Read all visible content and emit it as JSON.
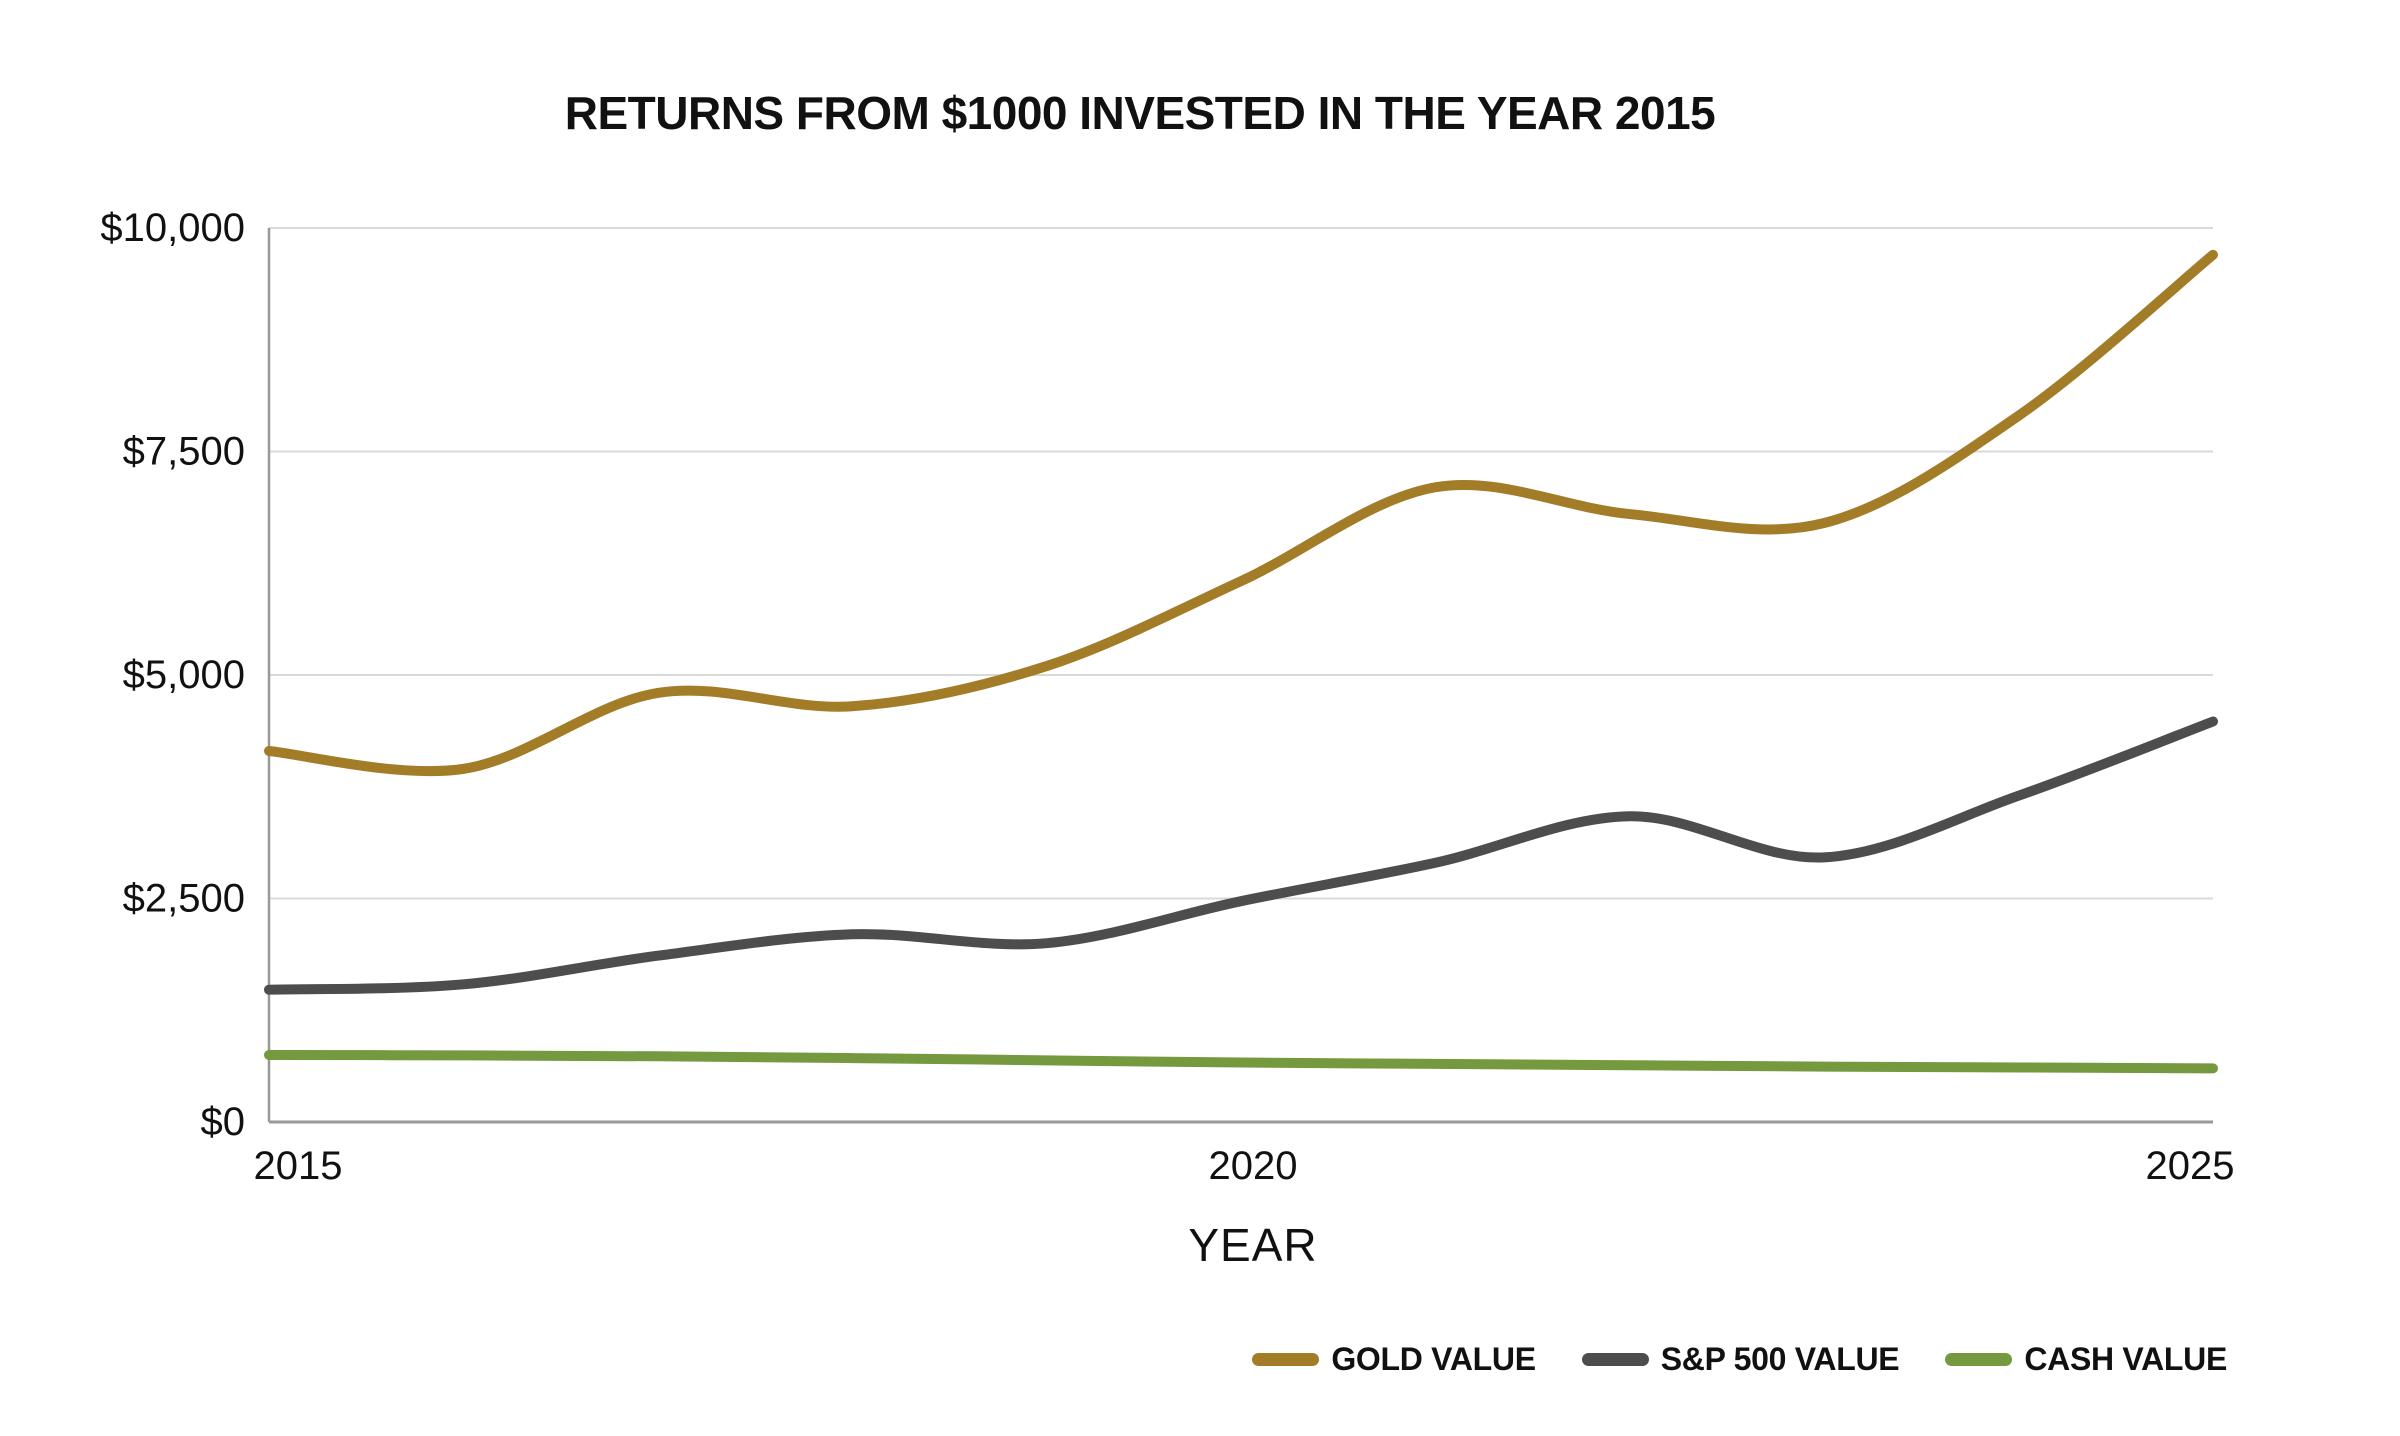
{
  "page": {
    "background": "#ffffff"
  },
  "chart_data": {
    "type": "line",
    "title": "RETURNS FROM $1000 INVESTED IN THE YEAR 2015",
    "xlabel": "YEAR",
    "ylabel": "",
    "xlim": [
      2015,
      2025
    ],
    "ylim": [
      0,
      10000
    ],
    "grid": "horizontal",
    "x": [
      2015,
      2016,
      2017,
      2018,
      2019,
      2020,
      2021,
      2022,
      2023,
      2024,
      2025
    ],
    "x_ticks": [
      {
        "value": 2015,
        "label": "2015"
      },
      {
        "value": 2020,
        "label": "2020"
      },
      {
        "value": 2025,
        "label": "2025"
      }
    ],
    "y_ticks": [
      {
        "value": 0,
        "label": "$0"
      },
      {
        "value": 2500,
        "label": "$2,500"
      },
      {
        "value": 5000,
        "label": "$5,000"
      },
      {
        "value": 7500,
        "label": "$7,500"
      },
      {
        "value": 10000,
        "label": "$10,000"
      }
    ],
    "series": [
      {
        "name": "GOLD VALUE",
        "color": "#A37C27",
        "values": [
          4150,
          3950,
          4800,
          4650,
          5100,
          6050,
          7100,
          6800,
          6700,
          7900,
          9700
        ]
      },
      {
        "name": "S&P 500 VALUE",
        "color": "#4D4D4D",
        "values": [
          1480,
          1540,
          1860,
          2100,
          2000,
          2470,
          2900,
          3420,
          2960,
          3650,
          4480
        ]
      },
      {
        "name": "CASH VALUE",
        "color": "#74993F",
        "values": [
          750,
          745,
          735,
          715,
          690,
          665,
          650,
          635,
          620,
          610,
          600
        ]
      }
    ],
    "legend_position": "bottom-right"
  },
  "colors": {
    "gridline": "#D9D9D9",
    "axis": "#999999",
    "text": "#111111"
  }
}
